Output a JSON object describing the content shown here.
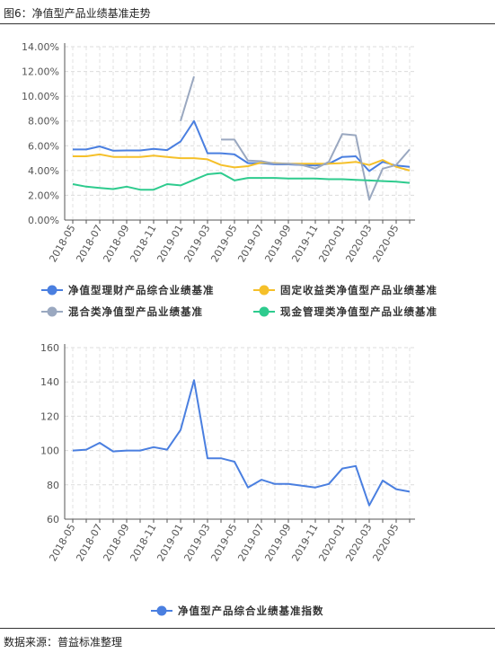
{
  "figure_title": "图6：净值型产品业绩基准走势",
  "source_note": "数据来源：普益标准整理",
  "chart_data": [
    {
      "type": "line",
      "x": [
        "2018-05",
        "2018-06",
        "2018-07",
        "2018-08",
        "2018-09",
        "2018-10",
        "2018-11",
        "2018-12",
        "2019-01",
        "2019-02",
        "2019-03",
        "2019-04",
        "2019-05",
        "2019-06",
        "2019-07",
        "2019-08",
        "2019-09",
        "2019-10",
        "2019-11",
        "2019-12",
        "2020-01",
        "2020-02",
        "2020-03",
        "2020-04",
        "2020-05",
        "2020-06"
      ],
      "x_tick_labels": [
        "2018-05",
        "2018-07",
        "2018-09",
        "2018-11",
        "2019-01",
        "2019-03",
        "2019-05",
        "2019-07",
        "2019-09",
        "2019-11",
        "2020-01",
        "2020-03",
        "2020-05"
      ],
      "y_tick_labels": [
        "0.00%",
        "2.00%",
        "4.00%",
        "6.00%",
        "8.00%",
        "10.00%",
        "12.00%",
        "14.00%"
      ],
      "ylim": [
        0,
        14
      ],
      "grid": true,
      "legend_position": "bottom",
      "series": [
        {
          "name": "净值型理财产品综合业绩基准",
          "color": "#4a7fe0",
          "values": [
            5.7,
            5.7,
            5.95,
            5.6,
            5.62,
            5.62,
            5.75,
            5.65,
            6.35,
            8.0,
            5.4,
            5.4,
            5.3,
            4.6,
            4.6,
            4.5,
            4.5,
            4.45,
            4.4,
            4.55,
            5.1,
            5.15,
            3.95,
            4.7,
            4.4,
            4.3
          ]
        },
        {
          "name": "固定收益类净值型产品业绩基准",
          "color": "#f5c02a",
          "values": [
            5.15,
            5.15,
            5.3,
            5.1,
            5.1,
            5.1,
            5.2,
            5.1,
            5.0,
            5.0,
            4.9,
            4.45,
            4.25,
            4.35,
            4.65,
            4.6,
            4.55,
            4.55,
            4.55,
            4.55,
            4.6,
            4.7,
            4.45,
            4.85,
            4.3,
            4.0
          ]
        },
        {
          "name": "混合类净值型产品业绩基准",
          "color": "#9aa8c0",
          "values": [
            null,
            null,
            null,
            null,
            null,
            null,
            null,
            null,
            8.0,
            11.6,
            null,
            6.5,
            6.5,
            4.8,
            4.75,
            4.55,
            4.55,
            4.45,
            4.15,
            4.7,
            6.95,
            6.85,
            1.65,
            4.15,
            4.45,
            5.7
          ]
        },
        {
          "name": "现金管理类净值型产品业绩基准",
          "color": "#2ecb8e",
          "values": [
            2.9,
            2.7,
            2.6,
            2.5,
            2.7,
            2.45,
            2.45,
            2.9,
            2.8,
            3.25,
            3.7,
            3.8,
            3.2,
            3.4,
            3.4,
            3.4,
            3.35,
            3.35,
            3.35,
            3.3,
            3.3,
            3.25,
            3.2,
            3.15,
            3.1,
            3.0
          ]
        }
      ]
    },
    {
      "type": "line",
      "x": [
        "2018-05",
        "2018-06",
        "2018-07",
        "2018-08",
        "2018-09",
        "2018-10",
        "2018-11",
        "2018-12",
        "2019-01",
        "2019-02",
        "2019-03",
        "2019-04",
        "2019-05",
        "2019-06",
        "2019-07",
        "2019-08",
        "2019-09",
        "2019-10",
        "2019-11",
        "2019-12",
        "2020-01",
        "2020-02",
        "2020-03",
        "2020-04",
        "2020-05",
        "2020-06"
      ],
      "x_tick_labels": [
        "2018-05",
        "2018-07",
        "2018-09",
        "2018-11",
        "2019-01",
        "2019-03",
        "2019-05",
        "2019-07",
        "2019-09",
        "2019-11",
        "2020-01",
        "2020-03",
        "2020-05"
      ],
      "y_tick_labels": [
        "60",
        "80",
        "100",
        "120",
        "140",
        "160"
      ],
      "ylim": [
        60,
        160
      ],
      "grid": true,
      "legend_position": "bottom",
      "series": [
        {
          "name": "净值型产品综合业绩基准指数",
          "color": "#4a7fe0",
          "values": [
            100,
            100.5,
            104.5,
            99.5,
            100,
            100,
            102,
            100.5,
            112,
            141,
            95.5,
            95.5,
            93.5,
            78.5,
            83,
            80.5,
            80.5,
            79.5,
            78.5,
            80.5,
            89.5,
            91,
            68,
            82.5,
            77.5,
            76
          ]
        }
      ]
    }
  ]
}
